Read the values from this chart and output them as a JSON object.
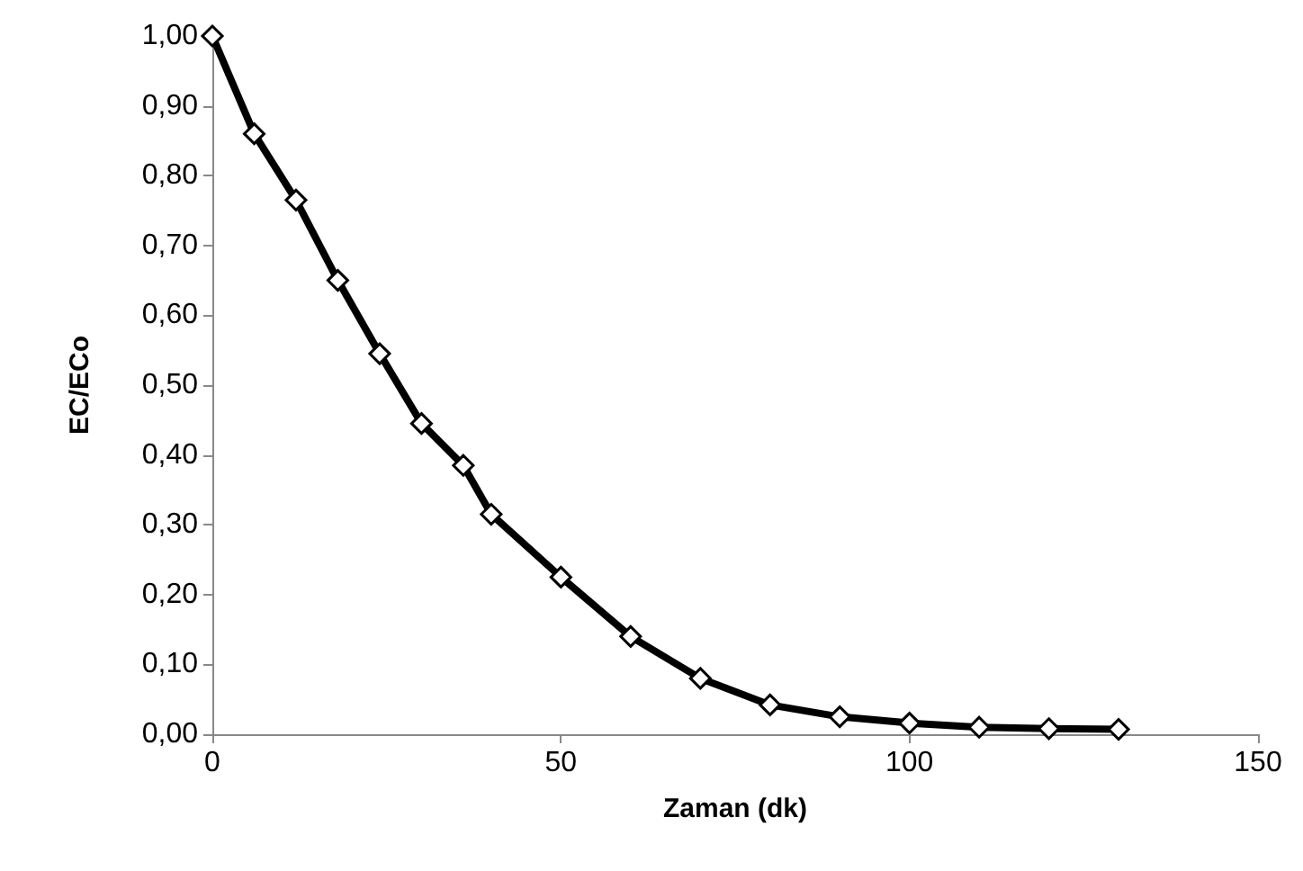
{
  "chart_data": {
    "type": "line",
    "xlabel": "Zaman (dk)",
    "ylabel": "EC/ECo",
    "x": [
      0,
      6,
      12,
      18,
      24,
      30,
      36,
      40,
      50,
      60,
      70,
      80,
      90,
      100,
      110,
      120,
      130
    ],
    "series": [
      {
        "color": "#000000",
        "values": [
          1.0,
          0.86,
          0.765,
          0.65,
          0.545,
          0.445,
          0.385,
          0.315,
          0.225,
          0.14,
          0.08,
          0.042,
          0.025,
          0.016,
          0.01,
          0.008,
          0.007
        ]
      }
    ],
    "xlim": [
      0,
      150
    ],
    "xticks": [
      0,
      50,
      100,
      150
    ],
    "ylim": [
      0,
      1
    ],
    "yticks": [
      {
        "value": 0,
        "label": "0,00"
      },
      {
        "value": 0.1,
        "label": "0,10"
      },
      {
        "value": 0.2,
        "label": "0,20"
      },
      {
        "value": 0.3,
        "label": "0,30"
      },
      {
        "value": 0.4,
        "label": "0,40"
      },
      {
        "value": 0.5,
        "label": "0,50"
      },
      {
        "value": 0.6,
        "label": "0,60"
      },
      {
        "value": 0.7,
        "label": "0,70"
      },
      {
        "value": 0.8,
        "label": "0,80"
      },
      {
        "value": 0.9,
        "label": "0,90"
      },
      {
        "value": 1,
        "label": "1,00"
      }
    ],
    "marker": "diamond",
    "line_style": "solid"
  }
}
